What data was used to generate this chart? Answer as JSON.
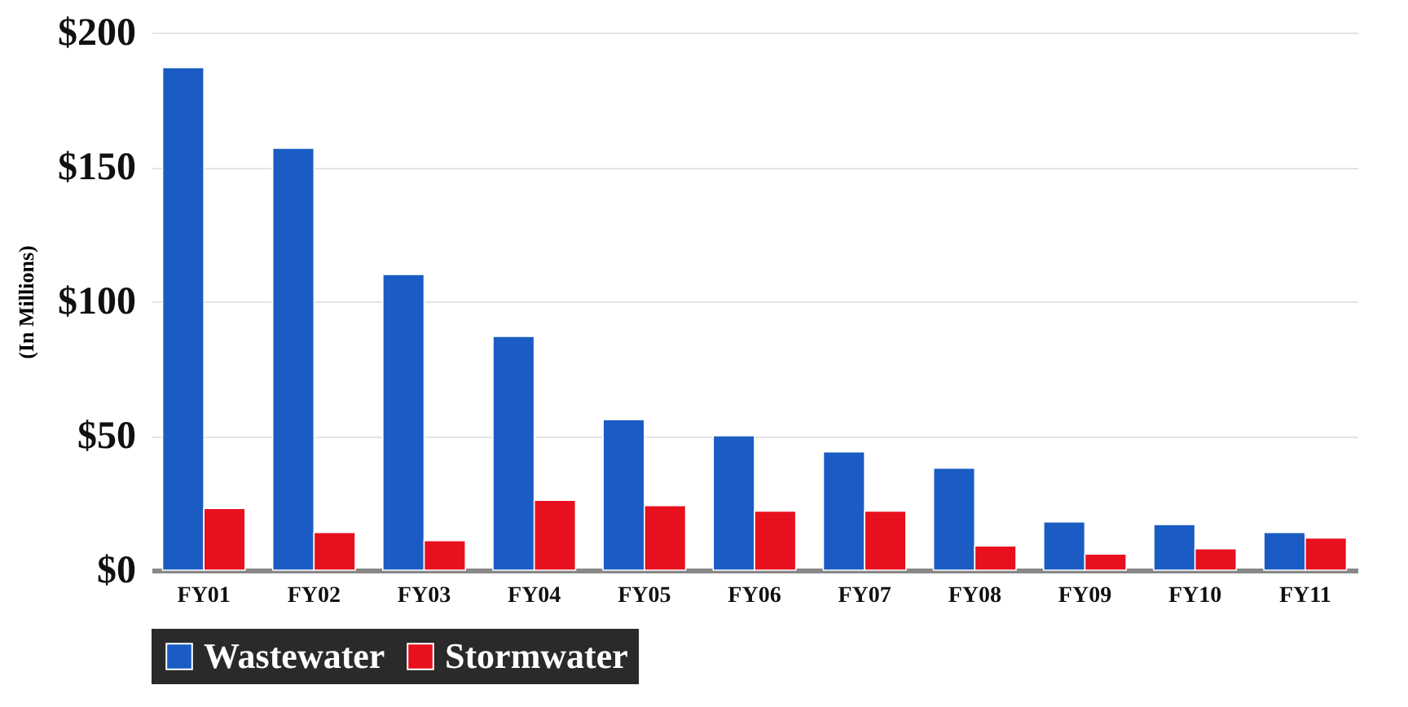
{
  "chart_data": {
    "type": "bar",
    "ylabel": "(In Millions)",
    "categories": [
      "FY01",
      "FY02",
      "FY03",
      "FY04",
      "FY05",
      "FY06",
      "FY07",
      "FY08",
      "FY09",
      "FY10",
      "FY11"
    ],
    "series": [
      {
        "name": "Wastewater",
        "color": "#1a5cc4",
        "values": [
          187,
          157,
          110,
          87,
          56,
          50,
          44,
          38,
          18,
          17,
          14
        ]
      },
      {
        "name": "Stormwater",
        "color": "#e8101e",
        "values": [
          23,
          14,
          11,
          26,
          24,
          22,
          22,
          9,
          6,
          8,
          12
        ]
      }
    ],
    "ylim": [
      0,
      200
    ],
    "yticks": [
      {
        "value": 0,
        "label": "$0"
      },
      {
        "value": 50,
        "label": "$50"
      },
      {
        "value": 100,
        "label": "$100"
      },
      {
        "value": 150,
        "label": "$150"
      },
      {
        "value": 200,
        "label": "$200"
      }
    ],
    "grid": "y",
    "legend": "bottom"
  }
}
